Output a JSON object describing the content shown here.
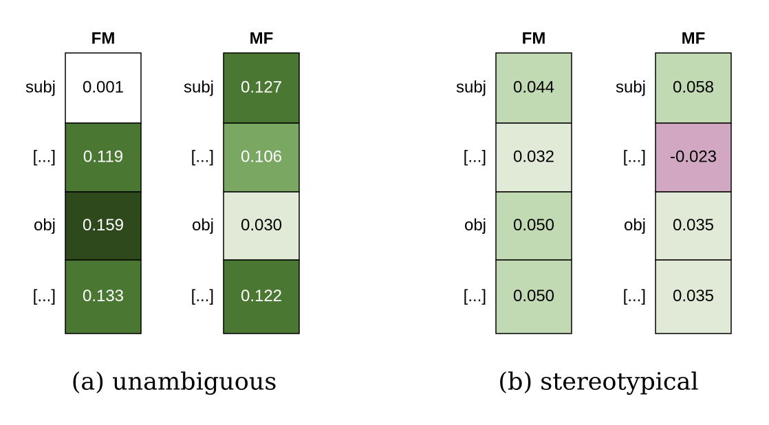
{
  "chart_data": [
    {
      "type": "heatmap",
      "caption": "(a) unambiguous",
      "columns": [
        {
          "title": "FM",
          "row_labels": [
            "subj",
            "[...]",
            "obj",
            "[...]"
          ],
          "values": [
            0.001,
            0.119,
            0.159,
            0.133
          ],
          "value_labels": [
            "0.001",
            "0.119",
            "0.159",
            "0.133"
          ],
          "cell_colors": [
            "#ffffff",
            "#4a7731",
            "#2e4a1d",
            "#4a7731"
          ],
          "text_colors": [
            "#000000",
            "#ffffff",
            "#ffffff",
            "#ffffff"
          ]
        },
        {
          "title": "MF",
          "row_labels": [
            "subj",
            "[...]",
            "obj",
            "[...]"
          ],
          "values": [
            0.127,
            0.106,
            0.03,
            0.122
          ],
          "value_labels": [
            "0.127",
            "0.106",
            "0.030",
            "0.122"
          ],
          "cell_colors": [
            "#4a7731",
            "#7aa862",
            "#e0ead7",
            "#4a7731"
          ],
          "text_colors": [
            "#ffffff",
            "#ffffff",
            "#000000",
            "#ffffff"
          ]
        }
      ]
    },
    {
      "type": "heatmap",
      "caption": "(b) stereotypical",
      "columns": [
        {
          "title": "FM",
          "row_labels": [
            "subj",
            "[...]",
            "obj",
            "[...]"
          ],
          "values": [
            0.044,
            0.032,
            0.05,
            0.05
          ],
          "value_labels": [
            "0.044",
            "0.032",
            "0.050",
            "0.050"
          ],
          "cell_colors": [
            "#c2dab3",
            "#e0ead7",
            "#c2dab3",
            "#c2dab3"
          ],
          "text_colors": [
            "#000000",
            "#000000",
            "#000000",
            "#000000"
          ]
        },
        {
          "title": "MF",
          "row_labels": [
            "subj",
            "[...]",
            "obj",
            "[...]"
          ],
          "values": [
            0.058,
            -0.023,
            0.035,
            0.035
          ],
          "value_labels": [
            "0.058",
            "-0.023",
            "0.035",
            "0.035"
          ],
          "cell_colors": [
            "#c2dab3",
            "#d2a7c1",
            "#e0ead7",
            "#e0ead7"
          ],
          "text_colors": [
            "#000000",
            "#000000",
            "#000000",
            "#000000"
          ]
        }
      ]
    }
  ]
}
